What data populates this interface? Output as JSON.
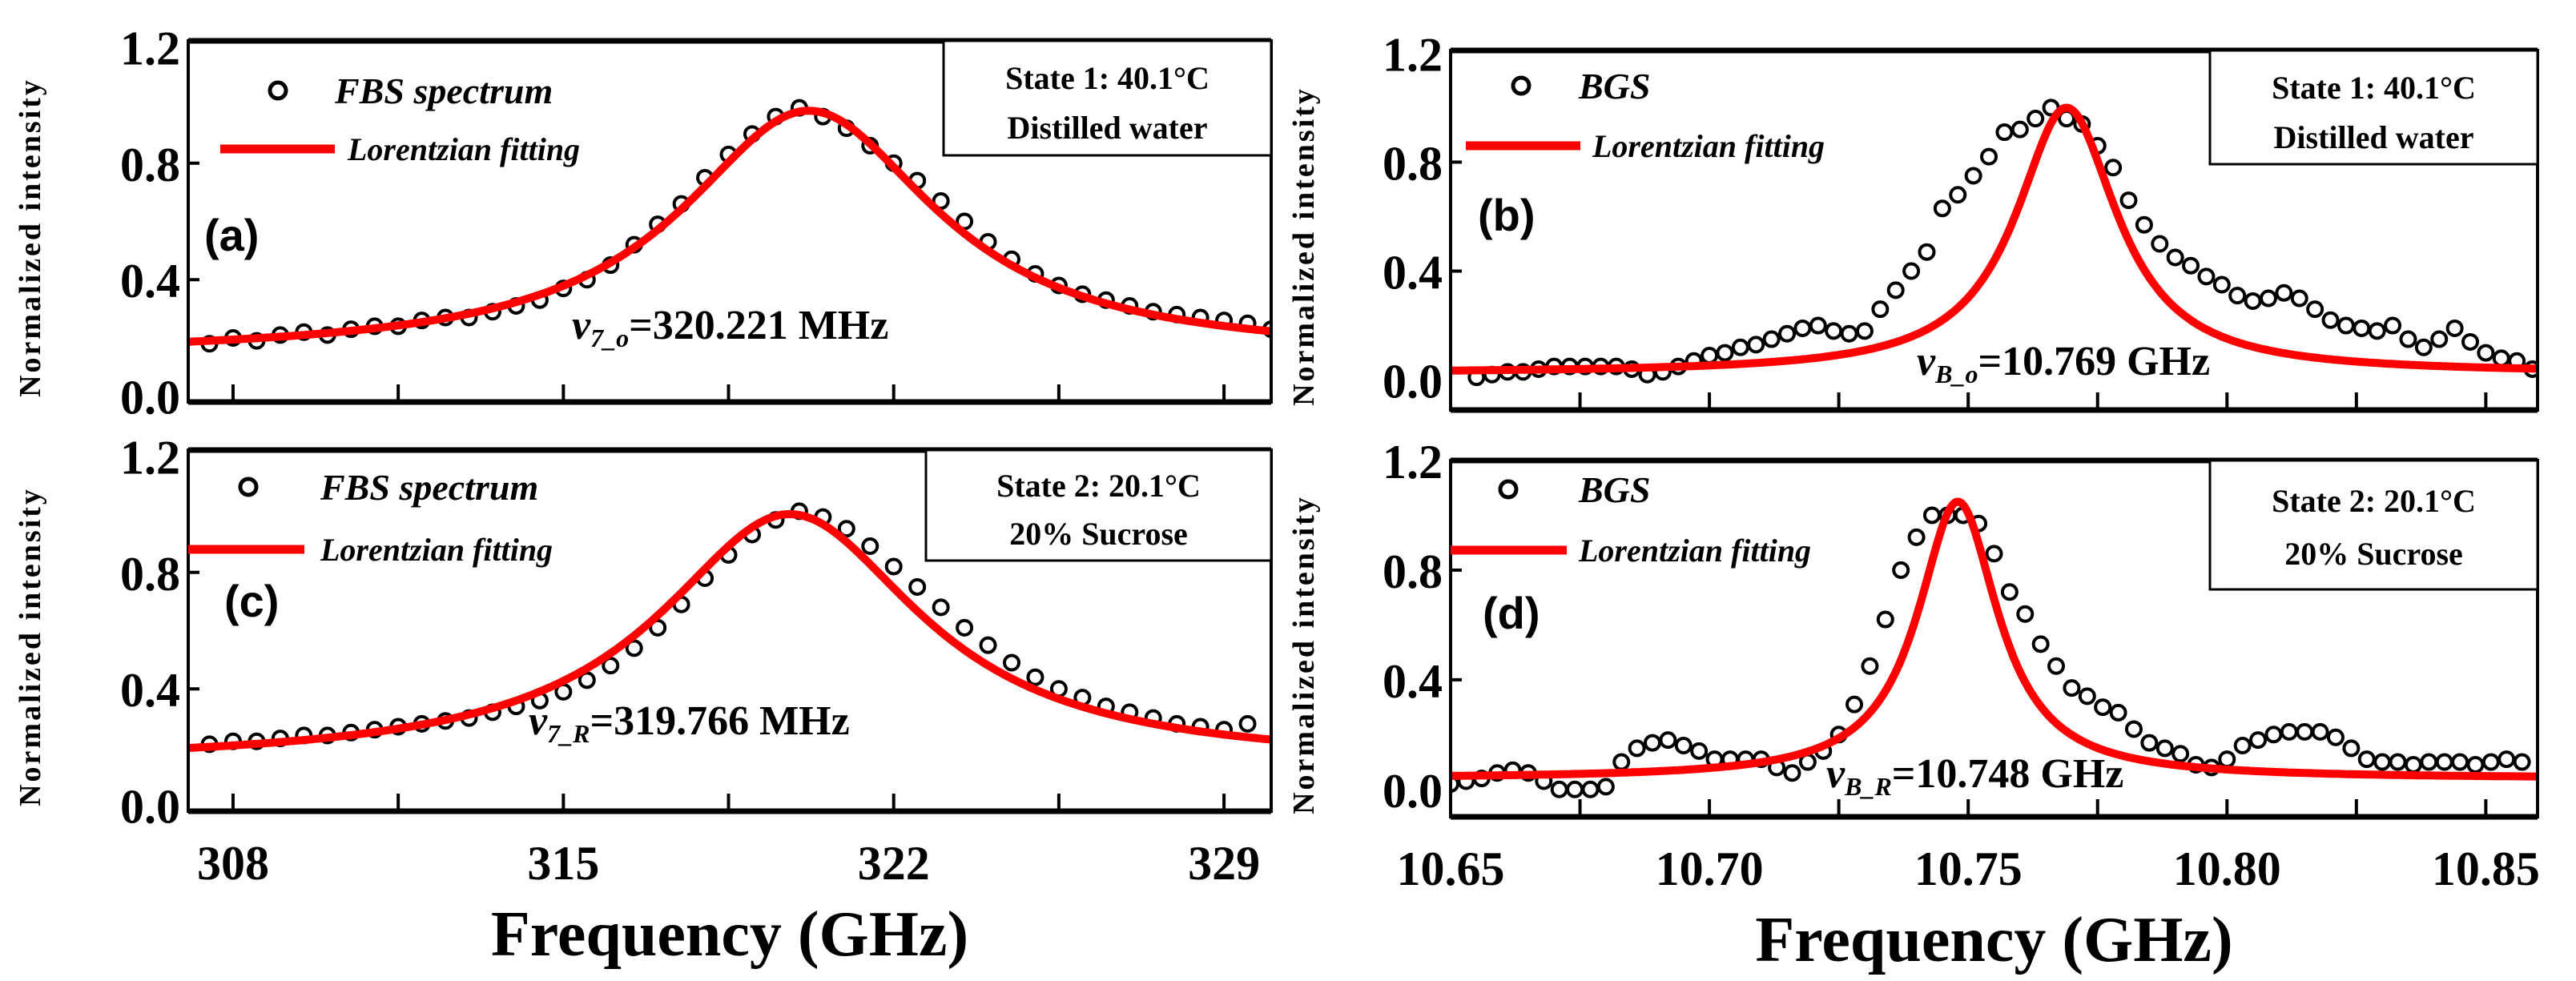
{
  "chart_data": [
    {
      "type": "scatter",
      "panel_label": "(a)",
      "ylabel": "Normalized intensity",
      "xlabel": "",
      "xlim": [
        307.05,
        330.0
      ],
      "ylim": [
        -0.02,
        1.22
      ],
      "x_major_ticks": [
        308,
        315,
        322,
        329
      ],
      "x_minor_ticks": [
        311.5,
        318.5,
        325.5
      ],
      "x_tick_labels": [],
      "y_ticks": [
        0.0,
        0.4,
        0.8,
        1.2
      ],
      "y_tick_labels": [
        "0.0",
        "0.4",
        "0.8",
        "1.2"
      ],
      "legend": {
        "scatter_label": "FBS spectrum",
        "line_label": "Lorentzian fitting"
      },
      "state": [
        "State 1: 40.1°C",
        "Distilled water"
      ],
      "annotation": {
        "symbol": "ν",
        "sub": "7_o",
        "value": "=320.221 MHz"
      },
      "scatter": {
        "name": "FBS spectrum",
        "x_start": 307.5,
        "x_step": 0.5,
        "y": [
          0.18,
          0.2,
          0.19,
          0.21,
          0.22,
          0.21,
          0.23,
          0.24,
          0.24,
          0.26,
          0.27,
          0.27,
          0.29,
          0.31,
          0.33,
          0.37,
          0.4,
          0.45,
          0.52,
          0.59,
          0.66,
          0.75,
          0.83,
          0.9,
          0.96,
          0.99,
          0.96,
          0.92,
          0.86,
          0.8,
          0.74,
          0.67,
          0.6,
          0.53,
          0.47,
          0.42,
          0.38,
          0.35,
          0.33,
          0.31,
          0.29,
          0.28,
          0.27,
          0.26,
          0.25,
          0.23
        ]
      },
      "fit": {
        "name": "Lorentzian fitting",
        "model": "lorentzian",
        "center": 320.2,
        "hwhm": 3.3,
        "offset": 0.137,
        "amplitude": 0.843
      }
    },
    {
      "type": "scatter",
      "panel_label": "(b)",
      "ylabel": "Normalized intensity",
      "xlabel": "",
      "xlim": [
        10.65,
        10.86
      ],
      "ylim": [
        -0.11,
        1.21
      ],
      "x_major_ticks": [
        10.65,
        10.7,
        10.75,
        10.8,
        10.85
      ],
      "x_minor_ticks": [
        10.675,
        10.725,
        10.775,
        10.825
      ],
      "x_tick_labels": [],
      "y_ticks": [
        0.0,
        0.4,
        0.8,
        1.2
      ],
      "y_tick_labels": [
        "0.0",
        "0.4",
        "0.8",
        "1.2"
      ],
      "legend": {
        "scatter_label": "BGS",
        "line_label": "Lorentzian fitting"
      },
      "state": [
        "State 1: 40.1°C",
        "Distilled water"
      ],
      "annotation": {
        "symbol": "ν",
        "sub": "B_o",
        "value": "=10.769 GHz"
      },
      "scatter": {
        "name": "BGS",
        "x_start": 10.655,
        "x_step": 0.003,
        "y": [
          0.01,
          0.02,
          0.03,
          0.03,
          0.04,
          0.05,
          0.05,
          0.05,
          0.05,
          0.05,
          0.04,
          0.02,
          0.03,
          0.05,
          0.07,
          0.09,
          0.1,
          0.12,
          0.13,
          0.15,
          0.17,
          0.19,
          0.2,
          0.18,
          0.17,
          0.18,
          0.26,
          0.33,
          0.4,
          0.47,
          0.63,
          0.68,
          0.75,
          0.82,
          0.91,
          0.92,
          0.96,
          1.0,
          0.96,
          0.94,
          0.86,
          0.78,
          0.66,
          0.57,
          0.5,
          0.45,
          0.42,
          0.38,
          0.35,
          0.31,
          0.29,
          0.3,
          0.32,
          0.3,
          0.26,
          0.22,
          0.2,
          0.19,
          0.18,
          0.2,
          0.15,
          0.12,
          0.15,
          0.19,
          0.14,
          0.1,
          0.08,
          0.07,
          0.04
        ]
      },
      "fit": {
        "name": "Lorentzian fitting",
        "model": "lorentzian",
        "center": 10.769,
        "hwhm": 0.012,
        "offset": 0.025,
        "amplitude": 0.975
      }
    },
    {
      "type": "scatter",
      "panel_label": "(c)",
      "ylabel": "Normalized intensity",
      "xlabel": "Frequency (GHz)",
      "xlim": [
        307.05,
        330.0
      ],
      "ylim": [
        -0.02,
        1.22
      ],
      "x_major_ticks": [
        308,
        315,
        322,
        329
      ],
      "x_minor_ticks": [
        311.5,
        318.5,
        325.5
      ],
      "x_tick_labels": [
        "308",
        "315",
        "322",
        "329"
      ],
      "y_ticks": [
        0.0,
        0.4,
        0.8,
        1.2
      ],
      "y_tick_labels": [
        "0.0",
        "0.4",
        "0.8",
        "1.2"
      ],
      "legend": {
        "scatter_label": "FBS spectrum",
        "line_label": "Lorentzian fitting"
      },
      "state": [
        "State 2: 20.1°C",
        "20% Sucrose"
      ],
      "annotation": {
        "symbol": "ν",
        "sub": "7_R",
        "value": "=319.766 MHz"
      },
      "scatter": {
        "name": "FBS spectrum",
        "x_start": 307.5,
        "x_step": 0.5,
        "y": [
          0.21,
          0.22,
          0.22,
          0.23,
          0.24,
          0.24,
          0.25,
          0.26,
          0.27,
          0.28,
          0.29,
          0.3,
          0.32,
          0.34,
          0.36,
          0.39,
          0.43,
          0.48,
          0.54,
          0.61,
          0.69,
          0.78,
          0.86,
          0.93,
          0.98,
          1.01,
          0.99,
          0.95,
          0.89,
          0.82,
          0.75,
          0.68,
          0.61,
          0.55,
          0.49,
          0.44,
          0.4,
          0.37,
          0.34,
          0.32,
          0.3,
          0.28,
          0.27,
          0.26,
          0.28
        ]
      },
      "fit": {
        "name": "Lorentzian fitting",
        "model": "lorentzian",
        "center": 319.8,
        "hwhm": 3.4,
        "offset": 0.14,
        "amplitude": 0.86
      }
    },
    {
      "type": "scatter",
      "panel_label": "(d)",
      "ylabel": "Normalized intensity",
      "xlabel": "Frequency (GHz)",
      "xlim": [
        10.65,
        10.86
      ],
      "ylim": [
        -0.1,
        1.2
      ],
      "x_major_ticks": [
        10.65,
        10.7,
        10.75,
        10.8,
        10.85
      ],
      "x_minor_ticks": [
        10.675,
        10.725,
        10.775,
        10.825
      ],
      "x_tick_labels": [
        "10.65",
        "10.70",
        "10.75",
        "10.80",
        "10.85"
      ],
      "y_ticks": [
        0.0,
        0.4,
        0.8,
        1.2
      ],
      "y_tick_labels": [
        "0.0",
        "0.4",
        "0.8",
        "1.2"
      ],
      "legend": {
        "scatter_label": "BGS",
        "line_label": "Lorentzian  fitting"
      },
      "state": [
        "State 2: 20.1°C",
        "20% Sucrose"
      ],
      "annotation": {
        "symbol": "ν",
        "sub": "B_R",
        "value": "=10.748 GHz"
      },
      "scatter": {
        "name": "BGS",
        "x_start": 10.65,
        "x_step": 0.003,
        "y": [
          0.02,
          0.03,
          0.04,
          0.06,
          0.07,
          0.06,
          0.03,
          0.0,
          0.0,
          0.0,
          0.01,
          0.1,
          0.15,
          0.17,
          0.18,
          0.16,
          0.14,
          0.11,
          0.11,
          0.11,
          0.11,
          0.08,
          0.06,
          0.1,
          0.14,
          0.2,
          0.31,
          0.45,
          0.62,
          0.8,
          0.92,
          1.0,
          1.0,
          1.0,
          0.97,
          0.86,
          0.72,
          0.64,
          0.53,
          0.45,
          0.37,
          0.34,
          0.3,
          0.28,
          0.22,
          0.17,
          0.15,
          0.13,
          0.09,
          0.08,
          0.11,
          0.16,
          0.18,
          0.2,
          0.21,
          0.21,
          0.21,
          0.19,
          0.15,
          0.11,
          0.1,
          0.1,
          0.09,
          0.1,
          0.1,
          0.1,
          0.09,
          0.1,
          0.11,
          0.1
        ]
      },
      "fit": {
        "name": "Lorentzian fitting",
        "model": "lorentzian",
        "center": 10.748,
        "hwhm": 0.0095,
        "offset": 0.04,
        "amplitude": 1.01
      }
    }
  ],
  "colors": {
    "fit_line": "#ff0000",
    "markers": "#000000",
    "axes": "#000000"
  }
}
